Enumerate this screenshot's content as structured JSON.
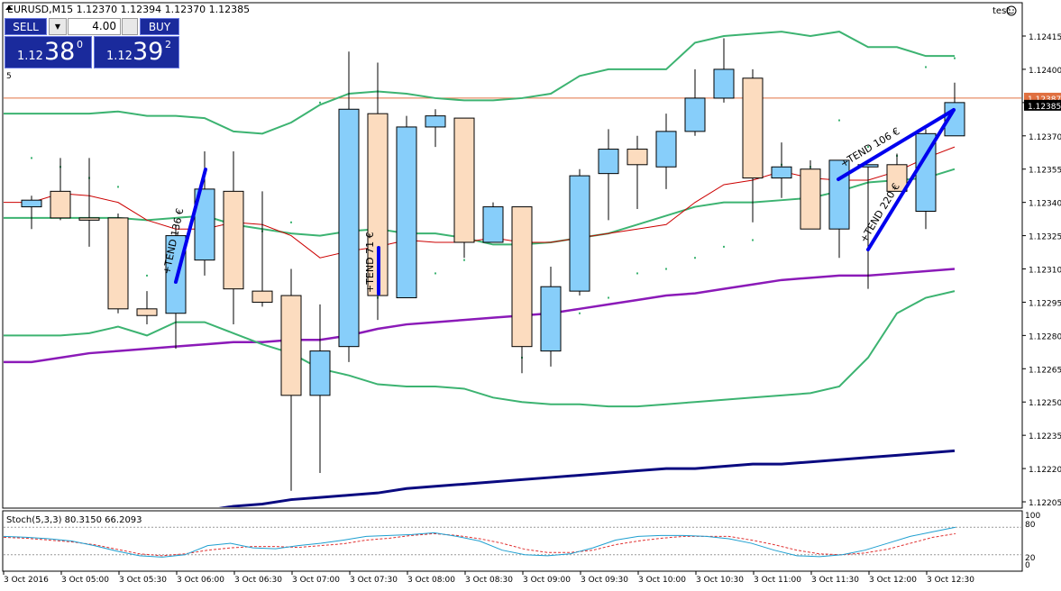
{
  "header": {
    "symbol_title": "EURUSD,M15  1.12370 1.12394 1.12370 1.12385",
    "expert": "test",
    "marker": "5"
  },
  "trade_panel": {
    "sell_label": "SELL",
    "buy_label": "BUY",
    "lot": "4.00",
    "sell_prefix": "1.12",
    "sell_big": "38",
    "sell_sup": "0",
    "buy_prefix": "1.12",
    "buy_big": "39",
    "buy_sup": "2"
  },
  "stoch_label": "Stoch(5,3,3) 80.3150 66.2093",
  "colors": {
    "bull": "#87cefa",
    "bear": "#fcdcbf",
    "bb": "#3cb371",
    "ma_red": "#cc0000",
    "ma_purple": "#8b1ab8",
    "ma_navy": "#0a0a80",
    "trend": "#0000ee",
    "stoch_main": "#1e9fd0",
    "stoch_signal": "#e03030",
    "price_line": "#e07040"
  },
  "chart_data": {
    "type": "candlestick",
    "symbol": "EURUSD",
    "timeframe": "M15",
    "ylim": [
      1.122,
      1.12425
    ],
    "y_ticks": [
      "1.12415",
      "1.12400",
      "1.12385",
      "1.12370",
      "1.12355",
      "1.12340",
      "1.12325",
      "1.12310",
      "1.12295",
      "1.12280",
      "1.12265",
      "1.12250",
      "1.12235",
      "1.12220",
      "1.12205"
    ],
    "current_price_label": "1.12385",
    "bid_line_label": "1.12387",
    "x_labels": [
      "3 Oct 2016",
      "3 Oct 05:00",
      "3 Oct 05:30",
      "3 Oct 06:00",
      "3 Oct 06:30",
      "3 Oct 07:00",
      "3 Oct 07:30",
      "3 Oct 08:00",
      "3 Oct 08:30",
      "3 Oct 09:00",
      "3 Oct 09:30",
      "3 Oct 10:00",
      "3 Oct 10:30",
      "3 Oct 11:00",
      "3 Oct 11:30",
      "3 Oct 12:00",
      "3 Oct 12:30"
    ],
    "candles": [
      {
        "o": 1.12338,
        "h": 1.12343,
        "l": 1.12328,
        "c": 1.12341
      },
      {
        "o": 1.12345,
        "h": 1.1236,
        "l": 1.12332,
        "c": 1.12333
      },
      {
        "o": 1.12333,
        "h": 1.1236,
        "l": 1.1232,
        "c": 1.12332
      },
      {
        "o": 1.12333,
        "h": 1.12335,
        "l": 1.1229,
        "c": 1.12292
      },
      {
        "o": 1.12292,
        "h": 1.123,
        "l": 1.12285,
        "c": 1.12289
      },
      {
        "o": 1.1229,
        "h": 1.1233,
        "l": 1.12274,
        "c": 1.12325
      },
      {
        "o": 1.12314,
        "h": 1.12363,
        "l": 1.12307,
        "c": 1.12346
      },
      {
        "o": 1.12345,
        "h": 1.12363,
        "l": 1.12285,
        "c": 1.12301
      },
      {
        "o": 1.123,
        "h": 1.12345,
        "l": 1.12293,
        "c": 1.12295
      },
      {
        "o": 1.12298,
        "h": 1.1231,
        "l": 1.1221,
        "c": 1.12253
      },
      {
        "o": 1.12253,
        "h": 1.12294,
        "l": 1.12218,
        "c": 1.12273
      },
      {
        "o": 1.12275,
        "h": 1.12408,
        "l": 1.12268,
        "c": 1.12382
      },
      {
        "o": 1.1238,
        "h": 1.12403,
        "l": 1.12287,
        "c": 1.12298
      },
      {
        "o": 1.12297,
        "h": 1.12379,
        "l": 1.12297,
        "c": 1.12374
      },
      {
        "o": 1.12374,
        "h": 1.12382,
        "l": 1.12365,
        "c": 1.12379
      },
      {
        "o": 1.12378,
        "h": 1.12378,
        "l": 1.12315,
        "c": 1.12322
      },
      {
        "o": 1.12322,
        "h": 1.1234,
        "l": 1.12322,
        "c": 1.12338
      },
      {
        "o": 1.12338,
        "h": 1.12338,
        "l": 1.12263,
        "c": 1.12275
      },
      {
        "o": 1.12273,
        "h": 1.12311,
        "l": 1.12266,
        "c": 1.12302
      },
      {
        "o": 1.123,
        "h": 1.12355,
        "l": 1.12298,
        "c": 1.12352
      },
      {
        "o": 1.12353,
        "h": 1.12373,
        "l": 1.12332,
        "c": 1.12364
      },
      {
        "o": 1.12364,
        "h": 1.1237,
        "l": 1.12337,
        "c": 1.12357
      },
      {
        "o": 1.12356,
        "h": 1.1238,
        "l": 1.12346,
        "c": 1.12372
      },
      {
        "o": 1.12372,
        "h": 1.124,
        "l": 1.1237,
        "c": 1.12387
      },
      {
        "o": 1.12387,
        "h": 1.12414,
        "l": 1.12385,
        "c": 1.124
      },
      {
        "o": 1.12396,
        "h": 1.124,
        "l": 1.12331,
        "c": 1.12351
      },
      {
        "o": 1.12351,
        "h": 1.12367,
        "l": 1.12342,
        "c": 1.12356
      },
      {
        "o": 1.12355,
        "h": 1.12359,
        "l": 1.12328,
        "c": 1.12328
      },
      {
        "o": 1.12328,
        "h": 1.12358,
        "l": 1.12315,
        "c": 1.12359
      },
      {
        "o": 1.12356,
        "h": 1.12357,
        "l": 1.12301,
        "c": 1.12357
      },
      {
        "o": 1.12357,
        "h": 1.12362,
        "l": 1.12345,
        "c": 1.12345
      },
      {
        "o": 1.12336,
        "h": 1.12373,
        "l": 1.12328,
        "c": 1.12371
      },
      {
        "o": 1.1237,
        "h": 1.12394,
        "l": 1.1237,
        "c": 1.12385
      }
    ],
    "bb_upper": [
      1.1238,
      1.1238,
      1.1238,
      1.12381,
      1.12379,
      1.12379,
      1.12378,
      1.12372,
      1.12371,
      1.12376,
      1.12384,
      1.12389,
      1.1239,
      1.12389,
      1.12387,
      1.12386,
      1.12386,
      1.12387,
      1.12389,
      1.12397,
      1.124,
      1.124,
      1.124,
      1.12412,
      1.12415,
      1.12416,
      1.12417,
      1.12415,
      1.12417,
      1.1241,
      1.1241,
      1.12406,
      1.12406
    ],
    "bb_middle": [
      1.12333,
      1.12333,
      1.12333,
      1.12333,
      1.12332,
      1.12333,
      1.12334,
      1.1233,
      1.12328,
      1.12326,
      1.12325,
      1.12327,
      1.12328,
      1.12326,
      1.12326,
      1.12324,
      1.12321,
      1.12321,
      1.12322,
      1.12324,
      1.12326,
      1.1233,
      1.12334,
      1.12338,
      1.1234,
      1.1234,
      1.12341,
      1.12342,
      1.12345,
      1.12349,
      1.1235,
      1.12351,
      1.12355
    ],
    "bb_lower": [
      1.1228,
      1.1228,
      1.12281,
      1.12284,
      1.1228,
      1.12286,
      1.12286,
      1.12281,
      1.12276,
      1.12272,
      1.12265,
      1.12262,
      1.12258,
      1.12257,
      1.12257,
      1.12256,
      1.12252,
      1.1225,
      1.12249,
      1.12249,
      1.12248,
      1.12248,
      1.12249,
      1.1225,
      1.12251,
      1.12252,
      1.12253,
      1.12254,
      1.12257,
      1.1227,
      1.1229,
      1.12297,
      1.123
    ],
    "ma_red": [
      1.1234,
      1.12344,
      1.12343,
      1.1234,
      1.12332,
      1.12328,
      1.12328,
      1.12331,
      1.1233,
      1.12325,
      1.12315,
      1.12318,
      1.1232,
      1.12323,
      1.12322,
      1.12322,
      1.12324,
      1.12322,
      1.12322,
      1.12324,
      1.12326,
      1.12328,
      1.1233,
      1.1234,
      1.12348,
      1.1235,
      1.12354,
      1.12351,
      1.1235,
      1.1235,
      1.12354,
      1.1236,
      1.12365
    ],
    "ma_purple": [
      1.12268,
      1.1227,
      1.12272,
      1.12273,
      1.12274,
      1.12275,
      1.12276,
      1.12277,
      1.12277,
      1.12278,
      1.12278,
      1.1228,
      1.12283,
      1.12285,
      1.12286,
      1.12287,
      1.12288,
      1.12289,
      1.1229,
      1.12292,
      1.12294,
      1.12296,
      1.12298,
      1.12299,
      1.12301,
      1.12303,
      1.12305,
      1.12306,
      1.12307,
      1.12307,
      1.12308,
      1.12309,
      1.1231
    ],
    "ma_navy": [
      1.12192,
      1.12193,
      1.12195,
      1.12196,
      1.12198,
      1.12199,
      1.12201,
      1.12203,
      1.12204,
      1.12206,
      1.12207,
      1.12208,
      1.12209,
      1.12211,
      1.12212,
      1.12213,
      1.12214,
      1.12215,
      1.12216,
      1.12217,
      1.12218,
      1.12219,
      1.1222,
      1.1222,
      1.12221,
      1.12222,
      1.12222,
      1.12223,
      1.12224,
      1.12225,
      1.12226,
      1.12227,
      1.12228
    ],
    "psar": [
      1.1236,
      1.12356,
      1.12351,
      1.12347,
      1.12307,
      1.12311,
      1.12315,
      1.12321,
      1.12327,
      1.12331,
      1.12385,
      1.1238,
      1.12297,
      1.12302,
      1.12308,
      1.12314,
      1.12337,
      1.1227,
      1.12284,
      1.1229,
      1.12297,
      1.12308,
      1.1231,
      1.12315,
      1.1232,
      1.12323,
      1.12357,
      1.12356,
      1.12377,
      1.12365,
      1.12361,
      1.12401,
      1.12405
    ],
    "trend_labels": [
      "+TEND 136 €",
      "+TEND 71 €",
      "+TEND 106 €",
      "+TEND 220 €"
    ],
    "stochastic": {
      "name": "Stoch(5,3,3)",
      "levels": [
        0,
        20,
        80,
        100
      ],
      "main": [
        60,
        58,
        55,
        50,
        40,
        28,
        18,
        15,
        20,
        40,
        45,
        35,
        33,
        40,
        45,
        52,
        60,
        62,
        64,
        68,
        60,
        50,
        30,
        20,
        18,
        22,
        35,
        52,
        60,
        62,
        62,
        60,
        55,
        45,
        30,
        18,
        16,
        20,
        30,
        45,
        60,
        70,
        80
      ],
      "signal": [
        58,
        56,
        52,
        48,
        42,
        32,
        22,
        18,
        22,
        30,
        35,
        38,
        38,
        36,
        40,
        44,
        52,
        56,
        62,
        66,
        62,
        55,
        45,
        32,
        25,
        25,
        30,
        42,
        50,
        56,
        60,
        60,
        60,
        52,
        42,
        30,
        22,
        20,
        24,
        32,
        45,
        58,
        66
      ]
    }
  }
}
